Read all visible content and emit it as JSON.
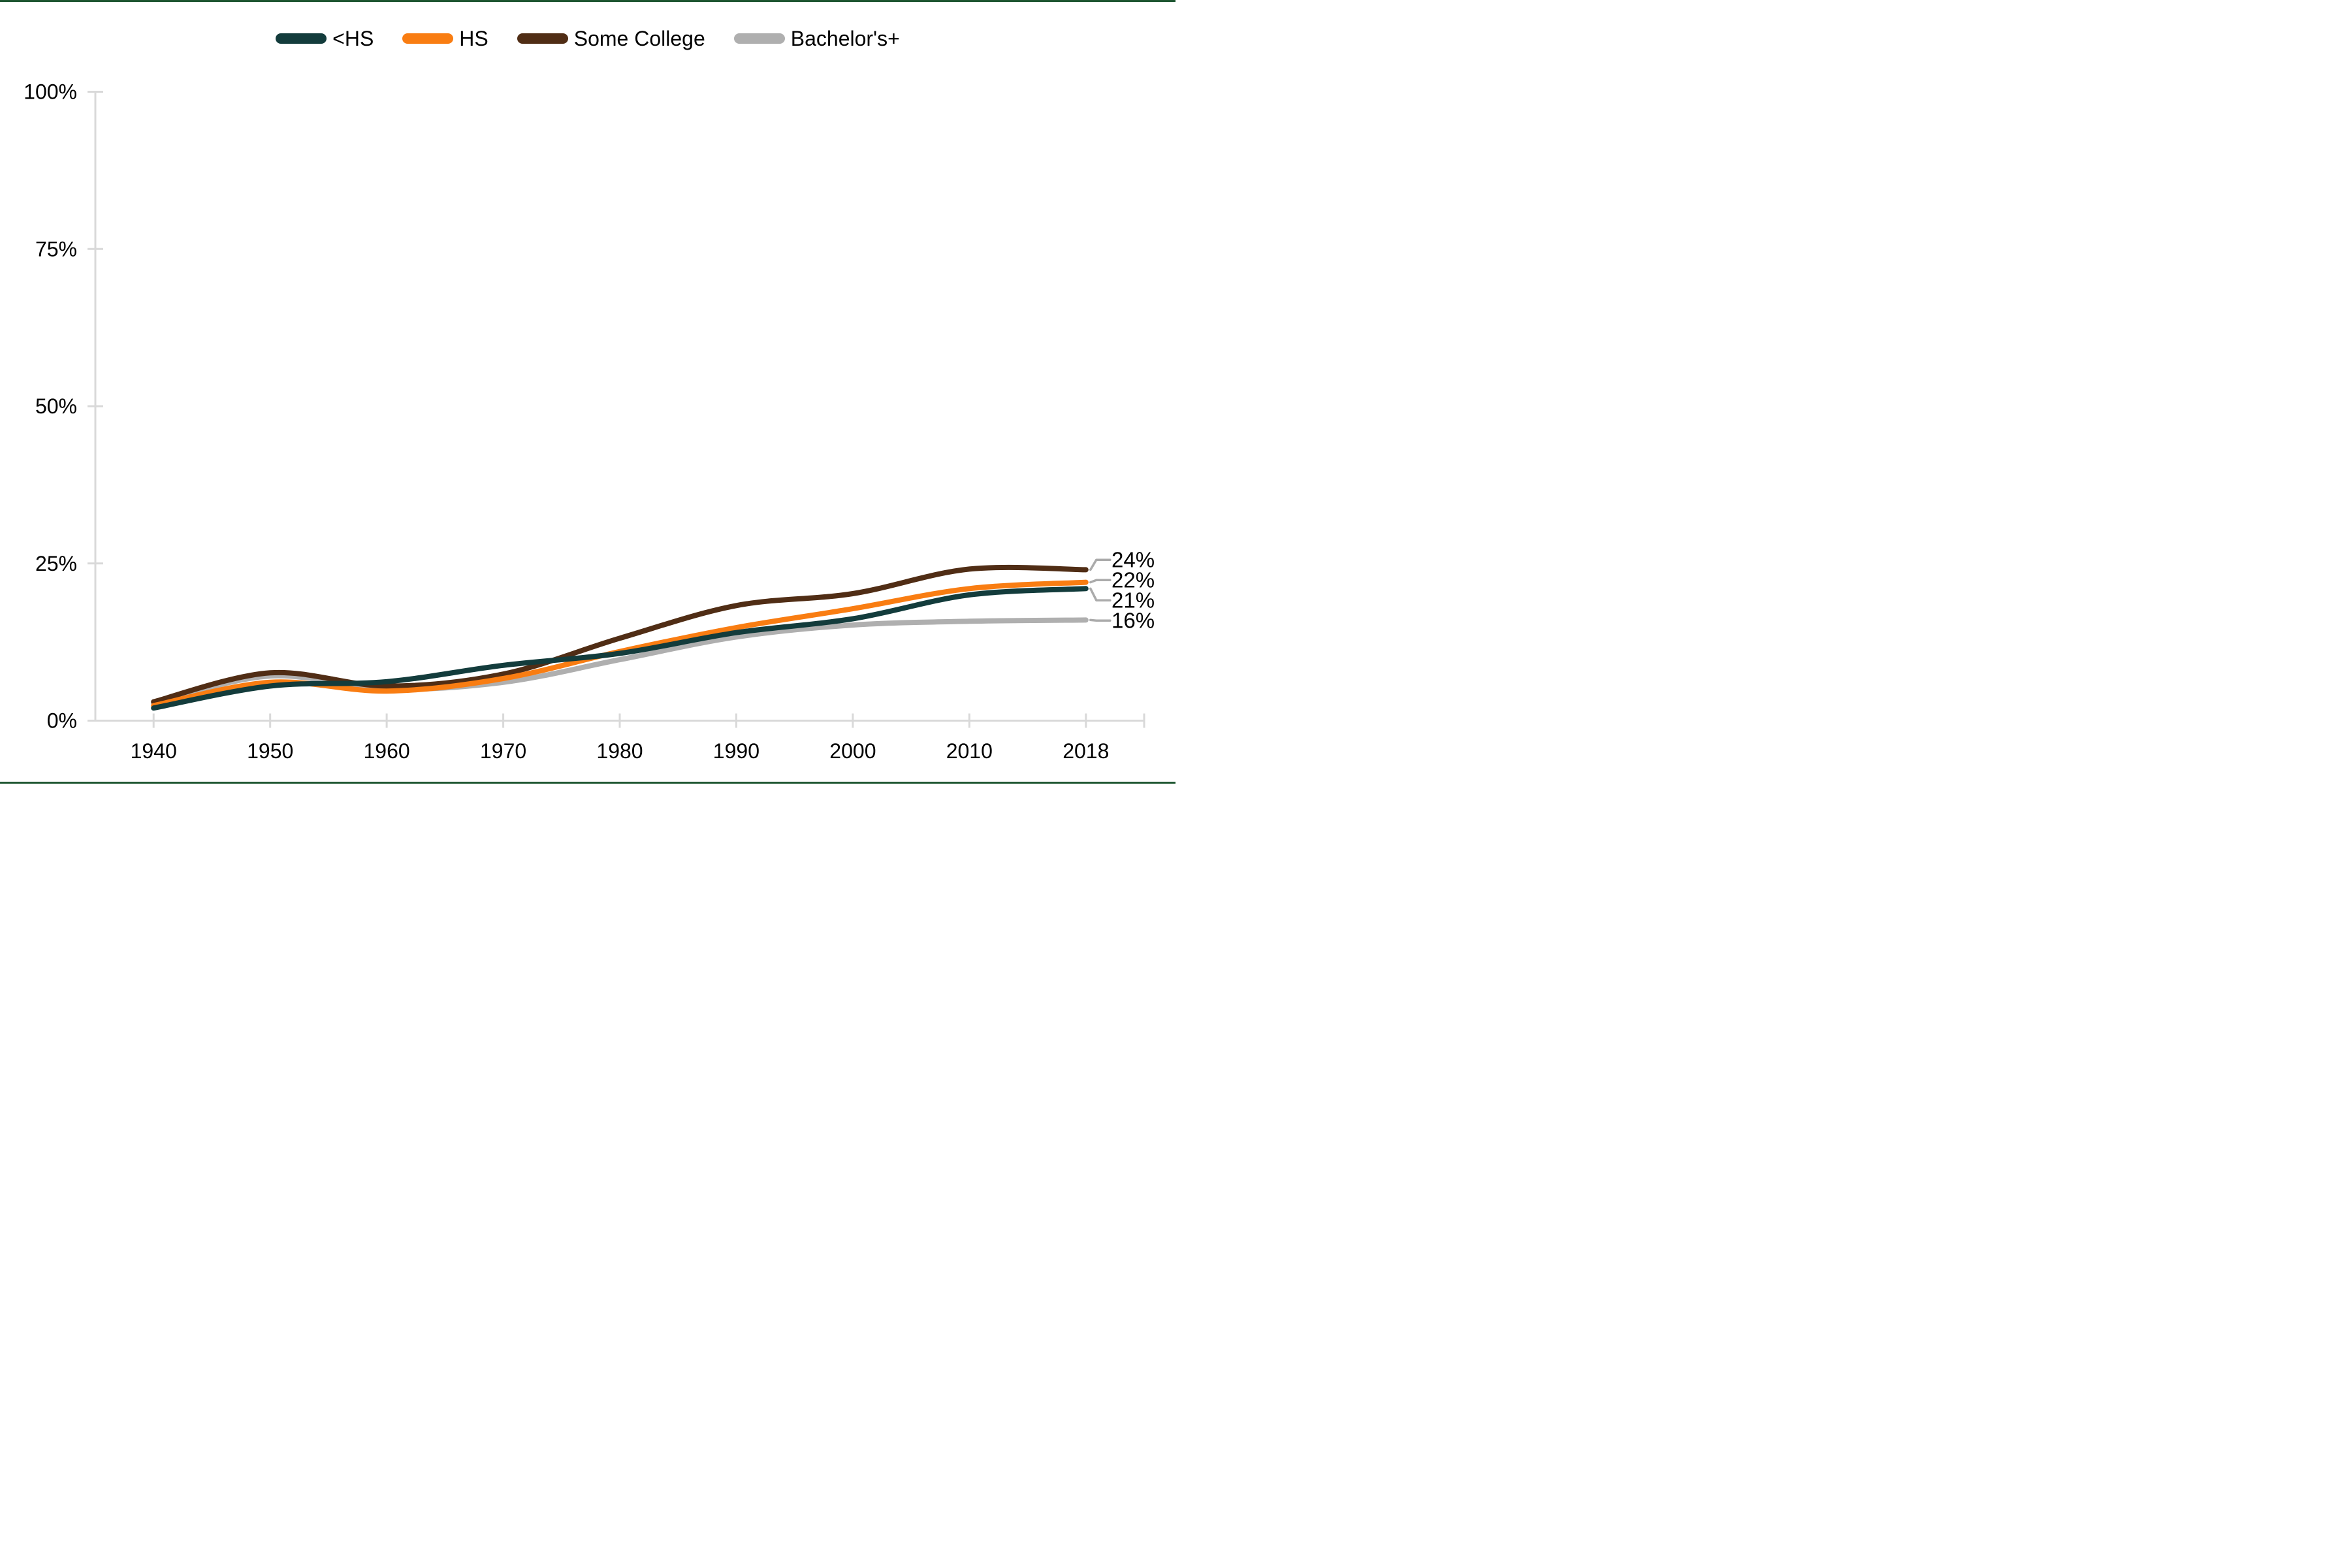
{
  "page": {
    "background": "#ffffff",
    "border_color": "#1E5631"
  },
  "legend": {
    "items": [
      {
        "label": "<HS",
        "color": "#133C3C"
      },
      {
        "label": "HS",
        "color": "#F97D12"
      },
      {
        "label": "Some College",
        "color": "#502D15"
      },
      {
        "label": "Bachelor's+",
        "color": "#AFAFAF"
      }
    ]
  },
  "chart_data": {
    "type": "line",
    "title": "",
    "xlabel": "",
    "ylabel": "",
    "x": [
      1940,
      1950,
      1960,
      1970,
      1980,
      1990,
      2000,
      2010,
      2018
    ],
    "x_tick_labels": [
      "1940",
      "1950",
      "1960",
      "1970",
      "1980",
      "1990",
      "2000",
      "2010",
      "2018"
    ],
    "y_tick_labels": [
      "0%",
      "25%",
      "50%",
      "75%",
      "100%"
    ],
    "ylim": [
      0,
      100
    ],
    "grid": false,
    "smooth": true,
    "legend_position": "top",
    "axis_color": "#D9D9D9",
    "leader_color": "#ABABAB",
    "series": [
      {
        "name": "<HS",
        "color": "#133C3C",
        "end_label": "21%",
        "values": [
          2.0,
          5.5,
          6.2,
          8.8,
          10.7,
          14.0,
          16.2,
          20.0,
          21.0
        ]
      },
      {
        "name": "HS",
        "color": "#F97D12",
        "end_label": "22%",
        "values": [
          2.4,
          6.1,
          4.7,
          6.7,
          11.0,
          14.8,
          17.8,
          21.0,
          22.0
        ]
      },
      {
        "name": "Some College",
        "color": "#502D15",
        "end_label": "24%",
        "values": [
          3.0,
          7.6,
          5.5,
          7.4,
          13.1,
          18.3,
          20.2,
          24.1,
          24.0
        ]
      },
      {
        "name": "Bachelor's+",
        "color": "#AFAFAF",
        "end_label": "16%",
        "values": [
          2.8,
          7.1,
          5.0,
          6.1,
          9.7,
          13.3,
          15.2,
          15.8,
          16.0
        ]
      }
    ]
  }
}
